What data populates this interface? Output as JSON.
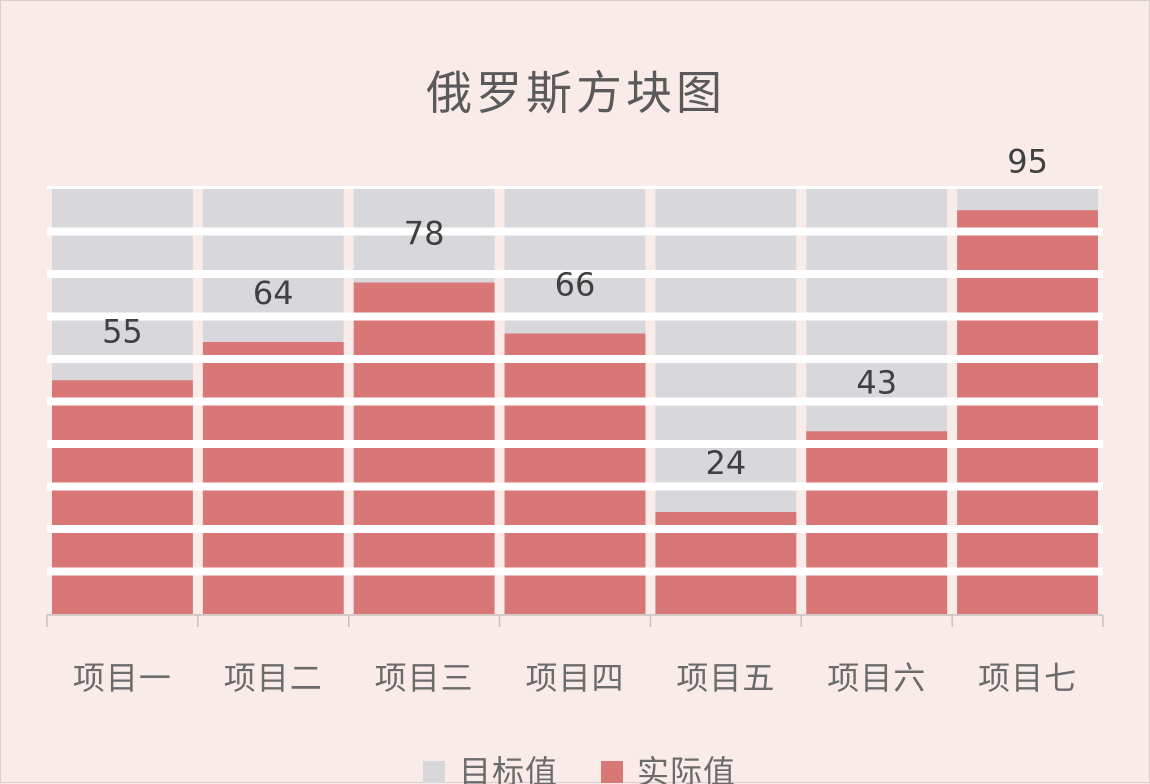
{
  "chart_data": {
    "type": "bar",
    "title": "俄罗斯方块图",
    "categories": [
      "项目一",
      "项目二",
      "项目三",
      "项目四",
      "项目五",
      "项目六",
      "项目七"
    ],
    "series": [
      {
        "name": "目标值",
        "values": [
          100,
          100,
          100,
          100,
          100,
          100,
          100
        ],
        "color": "#d8d8dc"
      },
      {
        "name": "实际值",
        "values": [
          55,
          64,
          78,
          66,
          24,
          43,
          95
        ],
        "color": "#d97676"
      }
    ],
    "data_labels": [
      55,
      64,
      78,
      66,
      24,
      43,
      95
    ],
    "ylim": [
      0,
      100
    ],
    "block_separator_color": "#ffffff",
    "legend_position": "bottom",
    "xlabel": "",
    "ylabel": ""
  }
}
